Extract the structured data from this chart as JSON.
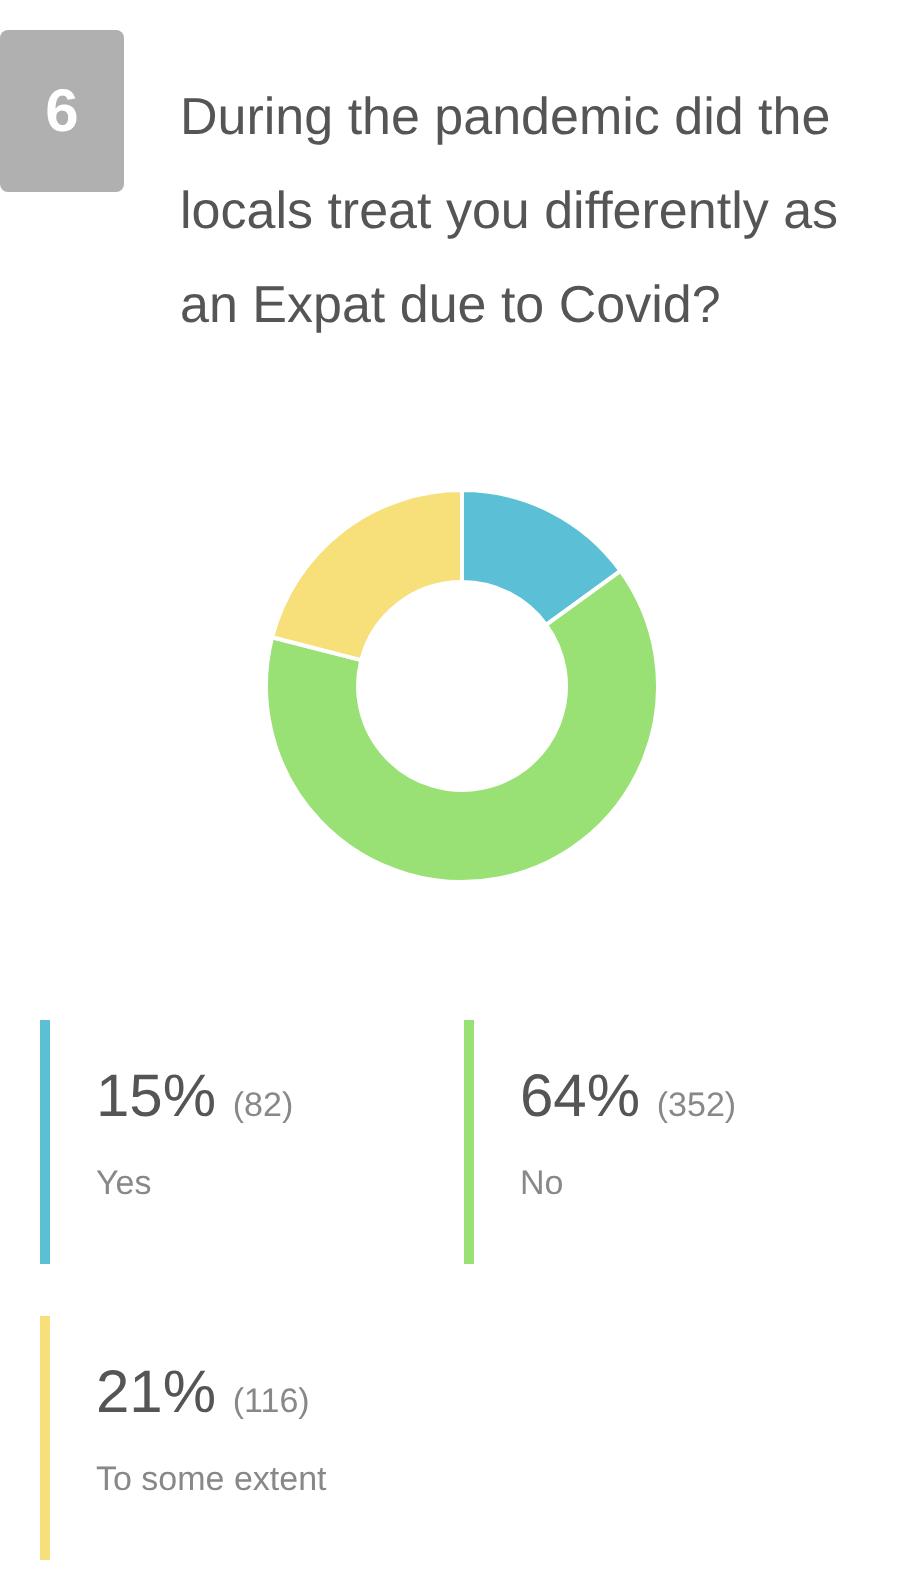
{
  "chart_data": {
    "type": "donut",
    "title": "During the pandemic did the locals treat you differently as an Expat due to Covid?",
    "annotations": [
      "6"
    ],
    "categories": [
      "Yes",
      "No",
      "To some extent"
    ],
    "values": [
      15,
      64,
      21
    ],
    "value_labels": [
      "15% (82)",
      "64% (352)",
      "21% (116)"
    ],
    "colors": [
      "#5bc0d6",
      "#99e175",
      "#f7e07a"
    ],
    "legend": "bottom"
  }
}
